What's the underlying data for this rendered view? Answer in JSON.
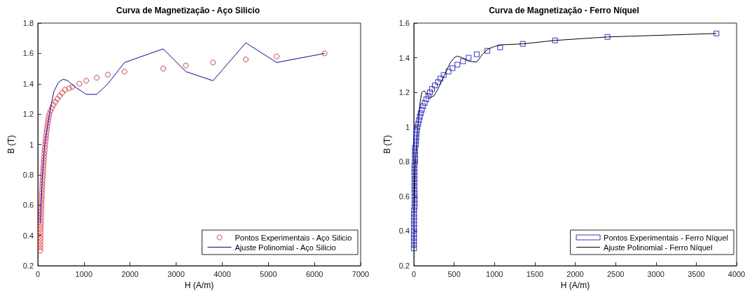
{
  "chart_data": [
    {
      "type": "scatter",
      "title": "Curva de Magnetização - Aço Silicio",
      "xlabel": "H (A/m)",
      "ylabel": "B (T)",
      "xlim": [
        0,
        7000
      ],
      "xticks": [
        0,
        1000,
        2000,
        3000,
        4000,
        5000,
        6000,
        7000
      ],
      "ylim": [
        0.2,
        1.8
      ],
      "yticks": [
        0.2,
        0.4,
        0.6,
        0.8,
        1,
        1.2,
        1.4,
        1.6,
        1.8
      ],
      "grid": false,
      "legend": "bottom right",
      "series": [
        {
          "name": "Pontos Experimentais - Aço Silicio",
          "marker": "circle",
          "color": "#ff0000",
          "x": [
            55,
            55,
            56,
            57,
            58,
            59,
            60,
            62,
            64,
            66,
            68,
            70,
            72,
            74,
            76,
            78,
            80,
            83,
            86,
            89,
            92,
            95,
            98,
            102,
            106,
            110,
            114,
            118,
            122,
            127,
            132,
            137,
            142,
            148,
            154,
            160,
            167,
            174,
            181,
            189,
            197,
            206,
            215,
            225,
            236,
            248,
            275,
            305,
            340,
            380,
            425,
            475,
            530,
            590,
            680,
            750,
            900,
            1050,
            1280,
            1520,
            1880,
            2720,
            3210,
            3800,
            4510,
            5180,
            6220
          ],
          "values": [
            0.3,
            0.32,
            0.34,
            0.36,
            0.38,
            0.4,
            0.42,
            0.44,
            0.46,
            0.48,
            0.5,
            0.52,
            0.54,
            0.56,
            0.58,
            0.6,
            0.62,
            0.64,
            0.66,
            0.68,
            0.7,
            0.72,
            0.74,
            0.76,
            0.78,
            0.8,
            0.82,
            0.84,
            0.86,
            0.88,
            0.9,
            0.92,
            0.94,
            0.96,
            0.98,
            1,
            1.02,
            1.04,
            1.06,
            1.08,
            1.1,
            1.12,
            1.14,
            1.16,
            1.18,
            1.2,
            1.22,
            1.24,
            1.26,
            1.28,
            1.3,
            1.32,
            1.34,
            1.36,
            1.37,
            1.38,
            1.4,
            1.42,
            1.44,
            1.46,
            1.48,
            1.5,
            1.52,
            1.54,
            1.56,
            1.58,
            1.6
          ]
        },
        {
          "name": "Ajuste Polinomial - Aço Silicio",
          "type": "line",
          "marker": "none",
          "line_style": "solid",
          "color": "#0000ff",
          "x": [
            55,
            70,
            100,
            150,
            200,
            280,
            350,
            450,
            550,
            650,
            800,
            1050,
            1280,
            1520,
            1880,
            2720,
            3210,
            3800,
            4510,
            5180,
            6220
          ],
          "values": [
            0.48,
            0.6,
            0.8,
            1,
            1.1,
            1.25,
            1.35,
            1.41,
            1.43,
            1.42,
            1.38,
            1.33,
            1.33,
            1.4,
            1.54,
            1.63,
            1.48,
            1.42,
            1.67,
            1.54,
            1.6
          ]
        }
      ]
    },
    {
      "type": "scatter",
      "title": "Curva de Magnetização - Ferro Níquel",
      "xlabel": "H (A/m)",
      "ylabel": "B (T)",
      "xlim": [
        0,
        4000
      ],
      "xticks": [
        0,
        500,
        1000,
        1500,
        2000,
        2500,
        3000,
        3500,
        4000
      ],
      "ylim": [
        0.2,
        1.6
      ],
      "yticks": [
        0.2,
        0.4,
        0.6,
        0.8,
        1,
        1.2,
        1.4,
        1.6
      ],
      "grid": false,
      "legend": "bottom right",
      "series": [
        {
          "name": "Pontos Experimentais - Ferro Níquel",
          "marker": "square",
          "color": "#0000ff",
          "x": [
            2,
            2,
            2,
            2,
            2,
            2,
            3,
            3,
            3,
            3,
            3,
            3,
            10,
            10,
            10,
            10,
            10,
            8,
            8,
            8,
            8,
            8,
            8,
            8,
            8,
            15,
            15,
            15,
            15,
            15,
            25,
            28,
            30,
            32,
            38,
            45,
            55,
            65,
            75,
            85,
            100,
            115,
            135,
            155,
            180,
            200,
            225,
            260,
            300,
            330,
            370,
            430,
            480,
            540,
            610,
            680,
            780,
            910,
            1070,
            1350,
            1750,
            2400,
            3750
          ],
          "values": [
            0.3,
            0.32,
            0.34,
            0.36,
            0.38,
            0.4,
            0.42,
            0.44,
            0.46,
            0.48,
            0.5,
            0.52,
            0.54,
            0.56,
            0.58,
            0.6,
            0.62,
            0.64,
            0.66,
            0.68,
            0.7,
            0.72,
            0.74,
            0.76,
            0.78,
            0.8,
            0.82,
            0.84,
            0.86,
            0.88,
            0.9,
            0.92,
            0.94,
            0.96,
            0.98,
            1,
            1.02,
            1.04,
            1.06,
            1.08,
            1.1,
            1.12,
            1.14,
            1.16,
            1.18,
            1.2,
            1.22,
            1.24,
            1.26,
            1.28,
            1.3,
            1.32,
            1.34,
            1.36,
            1.38,
            1.4,
            1.42,
            1.44,
            1.46,
            1.48,
            1.5,
            1.52,
            1.54
          ]
        },
        {
          "name": "Ajuste Polinomial - Ferro Níquel",
          "type": "line",
          "marker": "none",
          "line_style": "solid",
          "color": "#000000",
          "x": [
            5,
            10,
            20,
            40,
            60,
            80,
            100,
            130,
            160,
            200,
            250,
            300,
            380,
            450,
            500,
            540,
            600,
            680,
            780,
            850,
            920,
            1000,
            1100,
            1350,
            1750,
            2400,
            3750
          ],
          "values": [
            0.5,
            0.6,
            0.8,
            0.95,
            1.05,
            1.15,
            1.2,
            1.21,
            1.19,
            1.17,
            1.18,
            1.22,
            1.3,
            1.37,
            1.4,
            1.41,
            1.4,
            1.38,
            1.375,
            1.42,
            1.45,
            1.465,
            1.475,
            1.48,
            1.5,
            1.52,
            1.54
          ]
        }
      ]
    }
  ]
}
